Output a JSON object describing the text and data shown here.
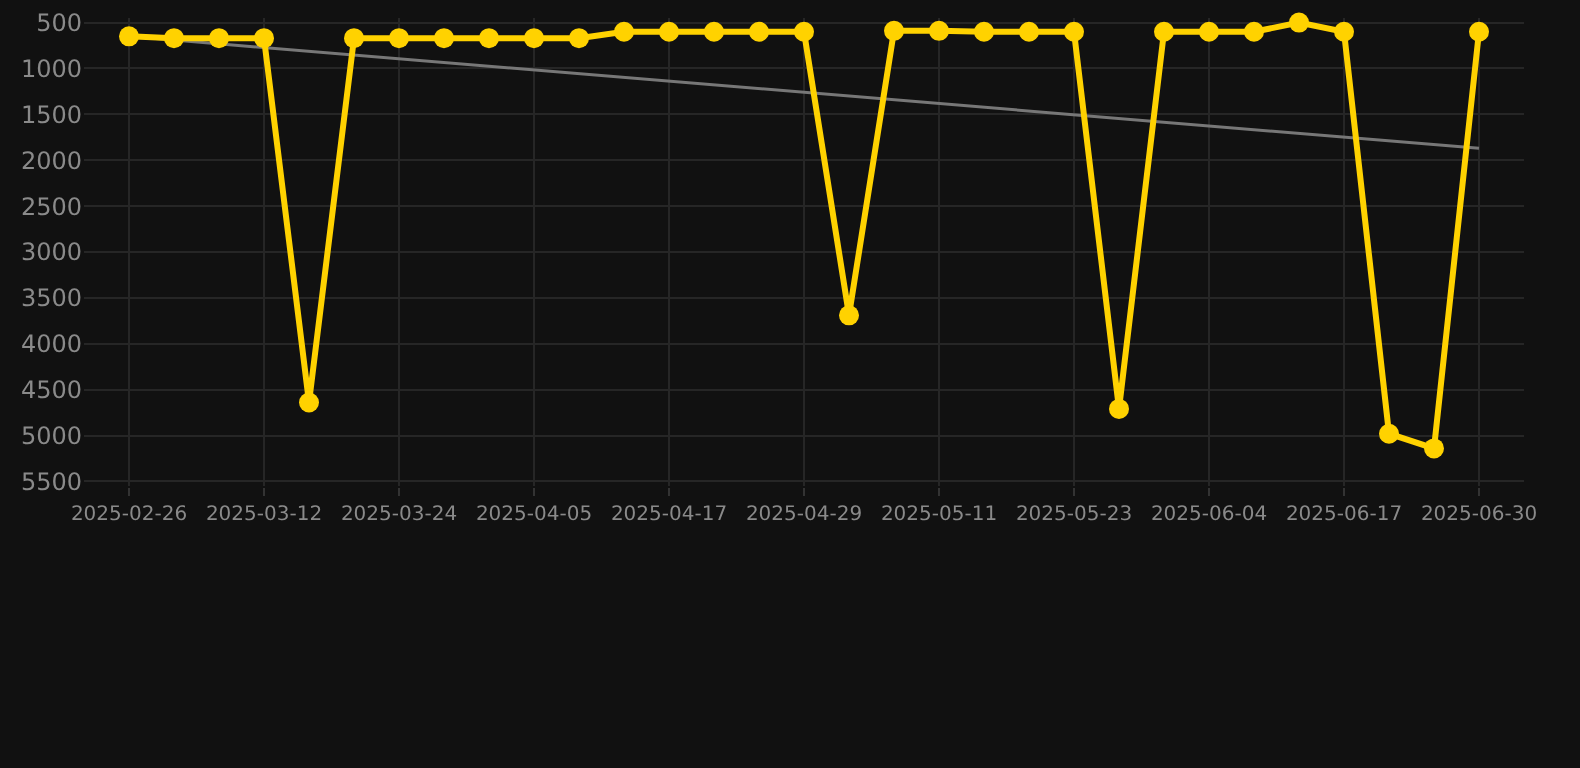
{
  "chart_data": {
    "type": "line",
    "categories": [
      "2025-02-26",
      null,
      null,
      "2025-03-12",
      null,
      null,
      "2025-03-24",
      null,
      null,
      "2025-04-05",
      null,
      null,
      "2025-04-17",
      null,
      null,
      "2025-04-29",
      null,
      null,
      "2025-05-11",
      null,
      null,
      "2025-05-23",
      null,
      null,
      "2025-06-04",
      null,
      null,
      "2025-06-17",
      null,
      null,
      "2025-06-30"
    ],
    "series": [
      {
        "color": "#ffd200",
        "marker": "circle",
        "values": [
          650,
          670,
          670,
          670,
          4640,
          670,
          670,
          670,
          670,
          670,
          670,
          600,
          600,
          600,
          600,
          600,
          3690,
          590,
          590,
          600,
          600,
          600,
          4710,
          600,
          600,
          600,
          500,
          600,
          4980,
          5140,
          600
        ]
      },
      {
        "type": "line",
        "color": "#777777",
        "marker": "none",
        "values": [
          650,
          null,
          null,
          null,
          null,
          null,
          null,
          null,
          null,
          null,
          null,
          null,
          null,
          null,
          null,
          null,
          null,
          null,
          null,
          null,
          null,
          null,
          null,
          null,
          null,
          null,
          null,
          null,
          null,
          null,
          1870
        ]
      }
    ],
    "ylim": [
      5550,
      450
    ],
    "yticks": [
      500,
      1000,
      1500,
      2000,
      2500,
      3000,
      3500,
      4000,
      4500,
      5000,
      5500
    ],
    "grid": true,
    "line_style": "solid"
  }
}
